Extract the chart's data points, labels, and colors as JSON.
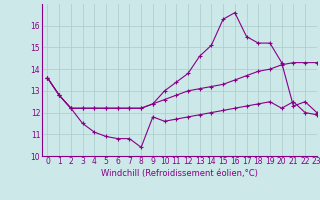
{
  "xlabel": "Windchill (Refroidissement éolien,°C)",
  "background_color": "#cce8e8",
  "line_color": "#880088",
  "grid_color": "#aacccc",
  "x": [
    0,
    1,
    2,
    3,
    4,
    5,
    6,
    7,
    8,
    9,
    10,
    11,
    12,
    13,
    14,
    15,
    16,
    17,
    18,
    19,
    20,
    21,
    22,
    23
  ],
  "line1": [
    13.6,
    12.8,
    12.2,
    11.5,
    11.1,
    10.9,
    10.8,
    10.8,
    10.4,
    11.8,
    11.6,
    11.7,
    11.8,
    11.9,
    12.0,
    12.1,
    12.2,
    12.3,
    12.4,
    12.5,
    12.2,
    12.5,
    12.0,
    11.9
  ],
  "line2": [
    13.6,
    12.8,
    12.2,
    12.2,
    12.2,
    12.2,
    12.2,
    12.2,
    12.2,
    12.4,
    12.6,
    12.8,
    13.0,
    13.1,
    13.2,
    13.3,
    13.5,
    13.7,
    13.9,
    14.0,
    14.2,
    14.3,
    14.3,
    14.3
  ],
  "line3": [
    13.6,
    12.8,
    12.2,
    12.2,
    12.2,
    12.2,
    12.2,
    12.2,
    12.2,
    12.4,
    13.0,
    13.4,
    13.8,
    14.6,
    15.1,
    16.3,
    16.6,
    15.5,
    15.2,
    15.2,
    14.3,
    12.3,
    12.5,
    12.0
  ],
  "ylim": [
    10,
    17
  ],
  "xlim": [
    -0.5,
    23
  ],
  "yticks": [
    10,
    11,
    12,
    13,
    14,
    15,
    16
  ],
  "xticks": [
    0,
    1,
    2,
    3,
    4,
    5,
    6,
    7,
    8,
    9,
    10,
    11,
    12,
    13,
    14,
    15,
    16,
    17,
    18,
    19,
    20,
    21,
    22,
    23
  ],
  "tick_fontsize": 5.5,
  "xlabel_fontsize": 6.0
}
